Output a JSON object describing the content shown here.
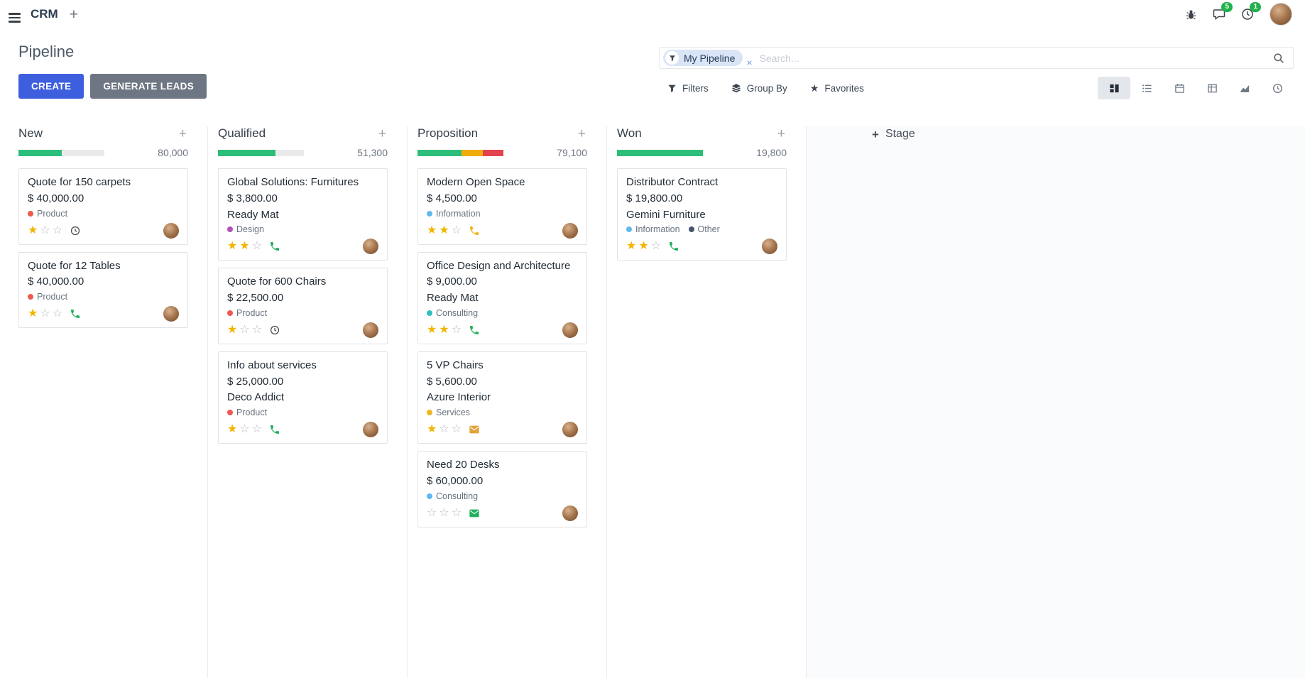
{
  "theme": {
    "primary": "#3e5fdd",
    "secondary": "#6e7583",
    "success": "#2dbe7a",
    "warning": "#efae0c",
    "danger": "#e2434f",
    "star": "#f1b500",
    "badge": "#21b24c"
  },
  "topbar": {
    "app_name": "CRM",
    "messages_badge": "5",
    "activities_badge": "1"
  },
  "control_panel": {
    "title": "Pipeline",
    "create_label": "CREATE",
    "generate_leads_label": "GENERATE LEADS",
    "search": {
      "facet_label": "My Pipeline",
      "placeholder": "Search..."
    },
    "filters_label": "Filters",
    "group_by_label": "Group By",
    "favorites_label": "Favorites",
    "active_view": "kanban",
    "view_switcher": [
      "kanban",
      "list",
      "calendar",
      "pivot",
      "graph",
      "activity"
    ]
  },
  "board": {
    "add_stage_label": "Stage",
    "columns": [
      {
        "name": "New",
        "total": "80,000",
        "progress": [
          {
            "color": "#2dbe7a",
            "pct": 50
          }
        ],
        "cards": [
          {
            "title": "Quote for 150 carpets",
            "amount": "$ 40,000.00",
            "partner": "",
            "tags": [
              {
                "label": "Product",
                "color": "#ee5a4f"
              }
            ],
            "stars": 1,
            "activity": {
              "icon": "clock",
              "color": "#4b5258"
            }
          },
          {
            "title": "Quote for 12 Tables",
            "amount": "$ 40,000.00",
            "partner": "",
            "tags": [
              {
                "label": "Product",
                "color": "#ee5a4f"
              }
            ],
            "stars": 1,
            "activity": {
              "icon": "phone",
              "color": "#22b05f"
            }
          }
        ]
      },
      {
        "name": "Qualified",
        "total": "51,300",
        "progress": [
          {
            "color": "#2dbe7a",
            "pct": 67
          }
        ],
        "cards": [
          {
            "title": "Global Solutions: Furnitures",
            "amount": "$ 3,800.00",
            "partner": "Ready Mat",
            "tags": [
              {
                "label": "Design",
                "color": "#b153b6"
              }
            ],
            "stars": 2,
            "activity": {
              "icon": "phone",
              "color": "#22b05f"
            }
          },
          {
            "title": "Quote for 600 Chairs",
            "amount": "$ 22,500.00",
            "partner": "",
            "tags": [
              {
                "label": "Product",
                "color": "#ee5a4f"
              }
            ],
            "stars": 1,
            "activity": {
              "icon": "clock",
              "color": "#4b5258"
            }
          },
          {
            "title": "Info about services",
            "amount": "$ 25,000.00",
            "partner": "Deco Addict",
            "tags": [
              {
                "label": "Product",
                "color": "#ee5a4f"
              }
            ],
            "stars": 1,
            "activity": {
              "icon": "phone",
              "color": "#22b05f"
            }
          }
        ]
      },
      {
        "name": "Proposition",
        "total": "79,100",
        "progress": [
          {
            "color": "#2dbe7a",
            "pct": 51
          },
          {
            "color": "#efae0c",
            "pct": 25
          },
          {
            "color": "#e2434f",
            "pct": 24
          }
        ],
        "cards": [
          {
            "title": "Modern Open Space",
            "amount": "$ 4,500.00",
            "partner": "",
            "tags": [
              {
                "label": "Information",
                "color": "#62b8f0"
              }
            ],
            "stars": 2,
            "activity": {
              "icon": "phone",
              "color": "#f0b20e"
            }
          },
          {
            "title": "Office Design and Architecture",
            "amount": "$ 9,000.00",
            "partner": "Ready Mat",
            "tags": [
              {
                "label": "Consulting",
                "color": "#2fbfbf"
              }
            ],
            "stars": 2,
            "activity": {
              "icon": "phone",
              "color": "#22b05f"
            }
          },
          {
            "title": "5 VP Chairs",
            "amount": "$ 5,600.00",
            "partner": "Azure Interior",
            "tags": [
              {
                "label": "Services",
                "color": "#ecb71f"
              }
            ],
            "stars": 1,
            "activity": {
              "icon": "envelope",
              "color": "#e2a33c"
            }
          },
          {
            "title": "Need 20 Desks",
            "amount": "$ 60,000.00",
            "partner": "",
            "tags": [
              {
                "label": "Consulting",
                "color": "#62b8f0"
              }
            ],
            "stars": 0,
            "activity": {
              "icon": "envelope",
              "color": "#22b05f"
            }
          }
        ]
      },
      {
        "name": "Won",
        "total": "19,800",
        "progress": [
          {
            "color": "#2dbe7a",
            "pct": 100
          }
        ],
        "cards": [
          {
            "title": "Distributor Contract",
            "amount": "$ 19,800.00",
            "partner": "Gemini Furniture",
            "tags": [
              {
                "label": "Information",
                "color": "#62b8f0"
              },
              {
                "label": "Other",
                "color": "#44546a"
              }
            ],
            "stars": 2,
            "activity": {
              "icon": "phone",
              "color": "#22b05f"
            }
          }
        ]
      }
    ]
  }
}
